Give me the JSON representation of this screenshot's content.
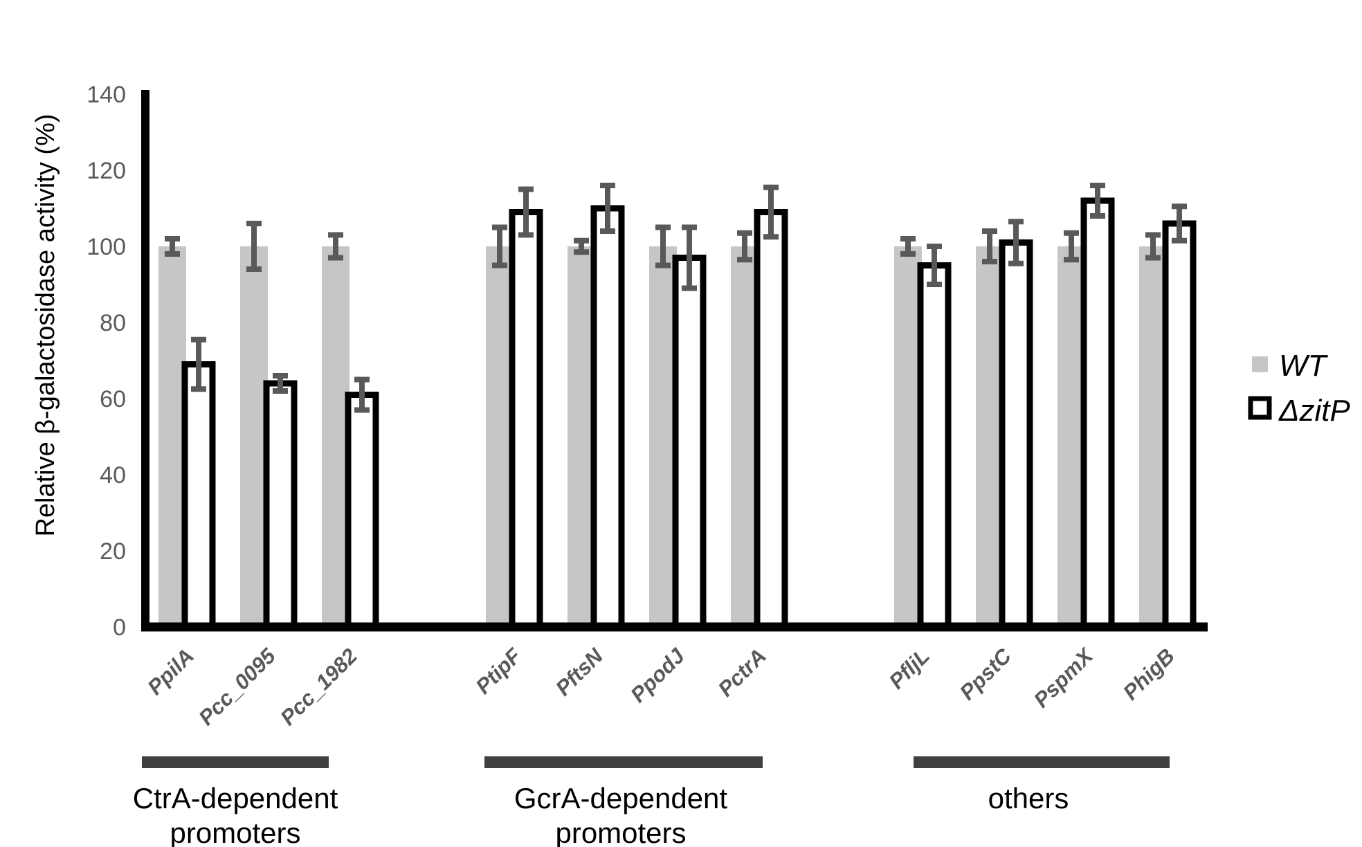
{
  "figure": {
    "background": "#ffffff"
  },
  "colors": {
    "wt_bar_fill": "#c6c6c6",
    "zitp_bar_fill": "#ffffff",
    "zitp_bar_outline": "#000000",
    "error_bar": "#595959",
    "axis": "#000000",
    "tick_label": "#595959",
    "x_label": "#595959",
    "group_underline": "#404040",
    "group_label": "#000000",
    "legend_text": "#000000"
  },
  "legend": {
    "items": [
      {
        "label": "WT",
        "swatch": "filled-gray-square"
      },
      {
        "label": "ΔzitP",
        "swatch": "open-black-outlined-square"
      }
    ],
    "position": "right"
  },
  "chart_data": {
    "type": "bar",
    "title": "",
    "ylabel": "Relative β-galactosidase activity (%)",
    "xlabel": "",
    "ylim": [
      0,
      140
    ],
    "yticks": [
      0,
      20,
      40,
      60,
      80,
      100,
      120,
      140
    ],
    "grid": false,
    "legend_position": "right",
    "categories": [
      "PpilA",
      "Pcc_0095",
      "Pcc_1982",
      "PtipF",
      "PftsN",
      "PpodJ",
      "PctrA",
      "PfljL",
      "PpstC",
      "PspmX",
      "PhigB"
    ],
    "groups": [
      {
        "label_lines": [
          "CtrA-dependent",
          "promoters"
        ],
        "categories": [
          "PpilA",
          "Pcc_0095",
          "Pcc_1982"
        ]
      },
      {
        "label_lines": [
          "GcrA-dependent",
          "promoters"
        ],
        "categories": [
          "PtipF",
          "PftsN",
          "PpodJ",
          "PctrA"
        ]
      },
      {
        "label_lines": [
          "others"
        ],
        "categories": [
          "PfljL",
          "PpstC",
          "PspmX",
          "PhigB"
        ]
      }
    ],
    "series": [
      {
        "name": "WT",
        "style": "filled",
        "values": [
          100,
          100,
          100,
          100,
          100,
          100,
          100,
          100,
          100,
          100,
          100
        ],
        "errors": [
          2,
          6,
          3,
          5,
          1.5,
          5,
          3.5,
          2,
          4,
          3.5,
          3
        ]
      },
      {
        "name": "ΔzitP",
        "style": "open",
        "values": [
          69,
          64,
          61,
          109,
          110,
          97,
          109,
          95,
          101,
          112,
          106
        ],
        "errors": [
          6.5,
          2,
          4,
          6,
          6,
          8,
          6.5,
          5,
          5.5,
          4,
          4.5
        ]
      }
    ]
  }
}
